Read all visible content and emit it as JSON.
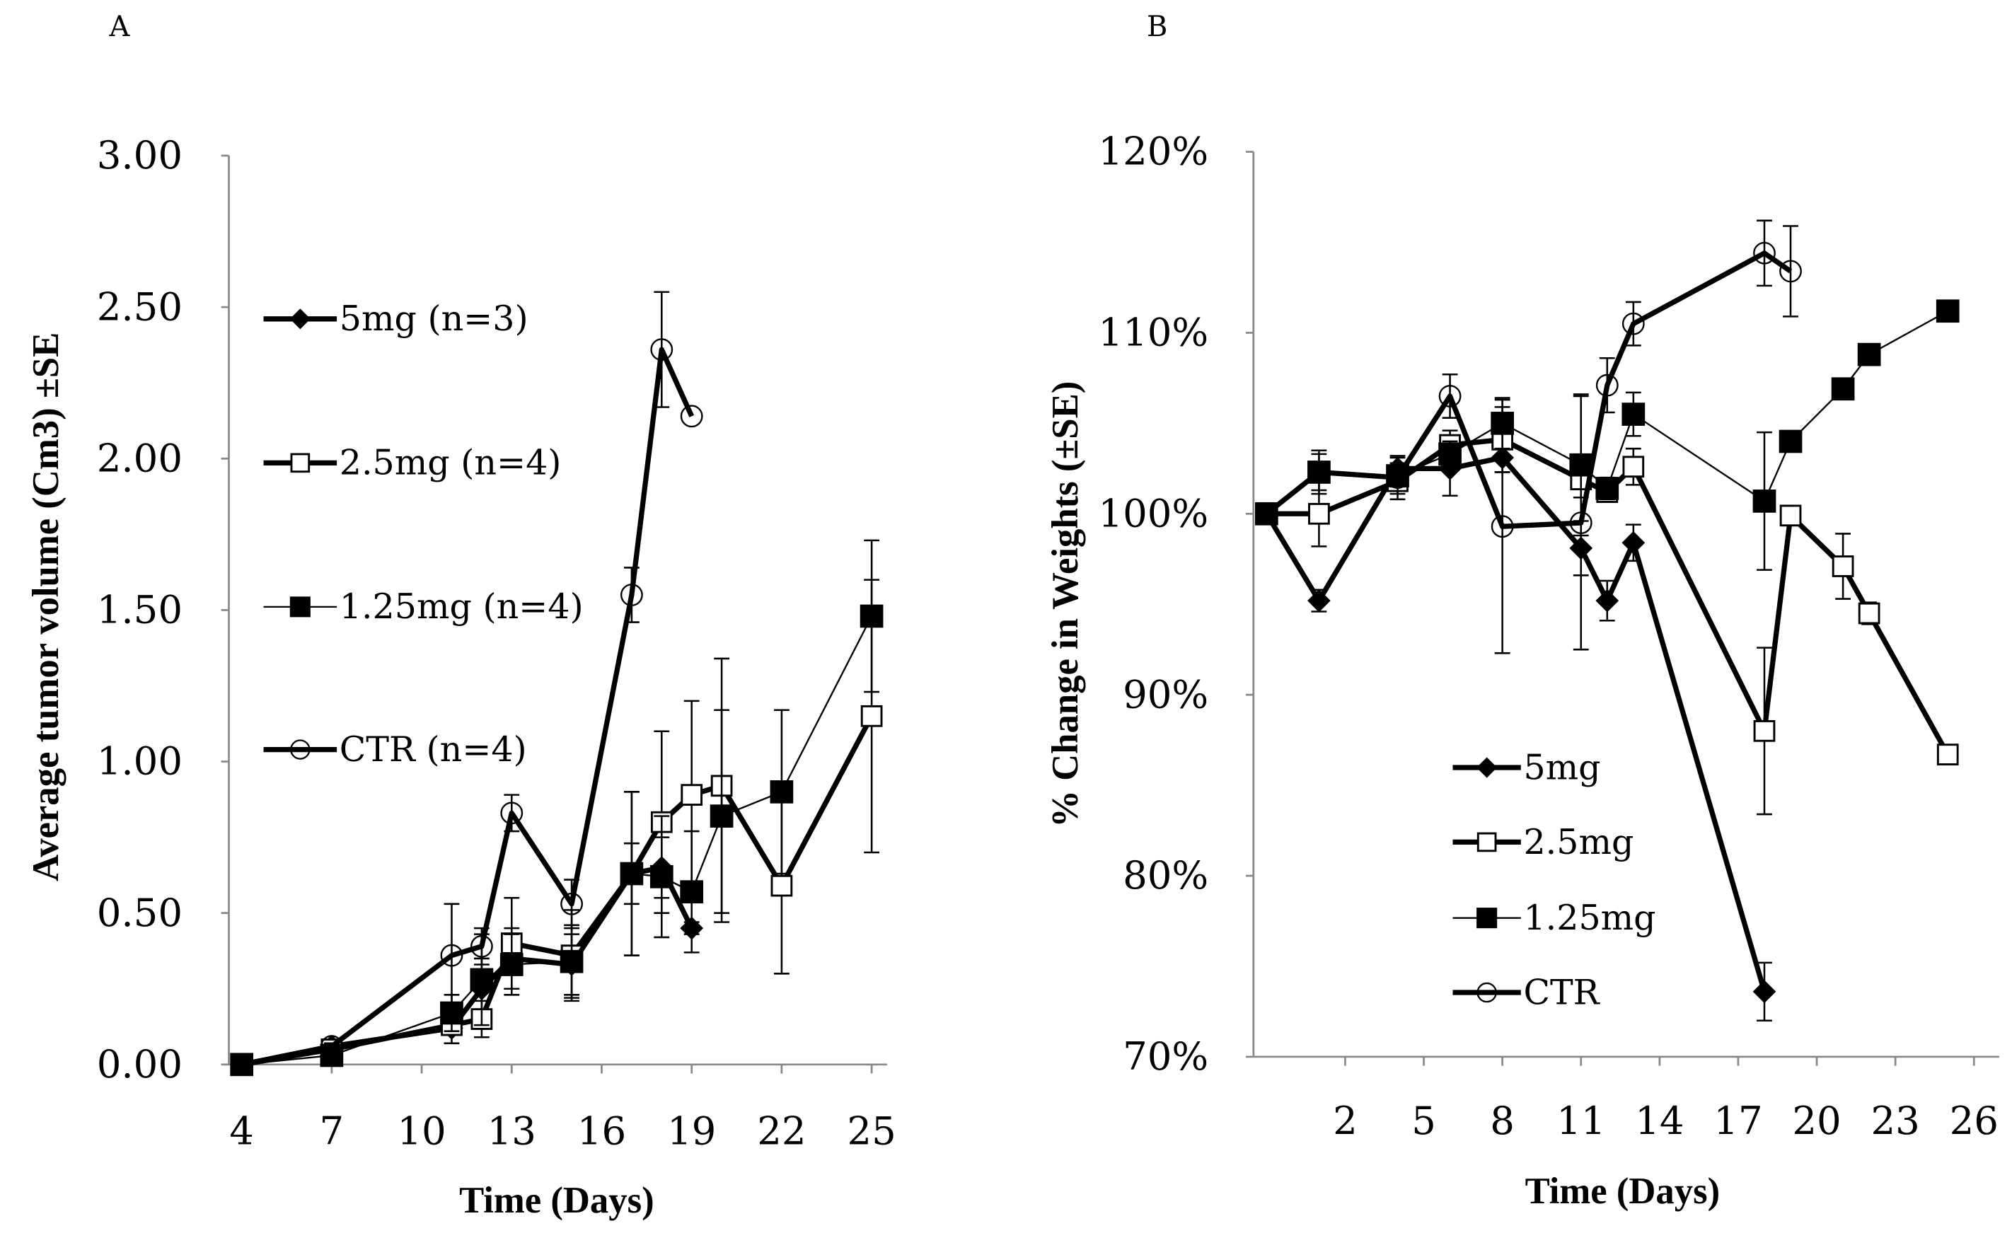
{
  "chart_data": [
    {
      "type": "line",
      "panel_label": "A",
      "title": "",
      "xlabel": "Time (Days)",
      "ylabel": "Average tumor volume (Cm3) ±SE",
      "xlim": [
        4,
        25
      ],
      "ylim": [
        0,
        3
      ],
      "xticks": [
        4,
        7,
        10,
        13,
        16,
        19,
        22,
        25
      ],
      "yticks": [
        0,
        0.5,
        1,
        1.5,
        2,
        2.5,
        3
      ],
      "ytick_labels": [
        "0.00",
        "0.50",
        "1.00",
        "1.50",
        "2.00",
        "2.50",
        "3.00"
      ],
      "grid": false,
      "legend_placement": "upper-left",
      "series": [
        {
          "name": "5mg (n=3)",
          "marker": "diamond-filled",
          "line": "thick",
          "x": [
            4,
            7,
            11,
            12,
            13,
            15,
            17,
            18,
            19
          ],
          "y": [
            0,
            0.06,
            0.12,
            0.25,
            0.35,
            0.33,
            0.63,
            0.65,
            0.45
          ],
          "err": [
            0,
            0.01,
            0.05,
            0.1,
            0.1,
            0.1,
            0.1,
            0.1,
            0.02
          ]
        },
        {
          "name": "2.5mg (n=4)",
          "marker": "square-open",
          "line": "thick",
          "x": [
            4,
            7,
            11,
            12,
            13,
            15,
            17,
            18,
            19,
            20,
            22,
            25
          ],
          "y": [
            0,
            0.05,
            0.13,
            0.15,
            0.4,
            0.36,
            0.63,
            0.8,
            0.89,
            0.92,
            0.59,
            1.15
          ],
          "err": [
            0,
            0.01,
            0.03,
            0.06,
            0.15,
            0.15,
            0.27,
            0.3,
            0.31,
            0.42,
            0.29,
            0.45
          ]
        },
        {
          "name": "1.25mg (n=4)",
          "marker": "square-filled",
          "line": "thin",
          "x": [
            4,
            7,
            11,
            12,
            13,
            15,
            17,
            18,
            19,
            20,
            22,
            25
          ],
          "y": [
            0,
            0.03,
            0.17,
            0.28,
            0.33,
            0.34,
            0.63,
            0.62,
            0.57,
            0.82,
            0.9,
            1.48
          ],
          "err": [
            0,
            0.01,
            0.06,
            0.15,
            0.1,
            0.12,
            0.27,
            0.2,
            0.2,
            0.35,
            0.27,
            0.25
          ]
        },
        {
          "name": "CTR (n=4)",
          "marker": "circle-open",
          "line": "thick",
          "x": [
            4,
            7,
            11,
            12,
            13,
            15,
            17,
            18,
            19
          ],
          "y": [
            0,
            0.06,
            0.36,
            0.39,
            0.83,
            0.53,
            1.55,
            2.36,
            2.14
          ],
          "err": [
            0,
            0.01,
            0.17,
            0.06,
            0.06,
            0.08,
            0.09,
            0.19,
            0
          ]
        }
      ]
    },
    {
      "type": "line",
      "panel_label": "B",
      "title": "",
      "xlabel": "Time (Days)",
      "ylabel": "% Change in Weights (±SE)",
      "xlim": [
        -1.5,
        27.5
      ],
      "ylim": [
        70,
        120
      ],
      "xticks": [
        2,
        5,
        8,
        11,
        14,
        17,
        20,
        23,
        26
      ],
      "yticks": [
        70,
        80,
        90,
        100,
        110,
        120
      ],
      "ytick_labels": [
        "70%",
        "80%",
        "90%",
        "100%",
        "110%",
        "120%"
      ],
      "grid": false,
      "legend_placement": "lower-center",
      "series": [
        {
          "name": "5mg",
          "marker": "diamond-filled",
          "line": "thick",
          "x": [
            -1,
            1,
            4,
            6,
            8,
            11,
            12,
            13,
            18
          ],
          "y": [
            100,
            95.2,
            102.5,
            102.5,
            103.1,
            98.1,
            95.2,
            98.4,
            73.6
          ],
          "err": [
            0,
            0.6,
            0.7,
            1.5,
            0.8,
            1.5,
            1.1,
            1.0,
            1.6
          ]
        },
        {
          "name": "2.5mg",
          "marker": "square-open",
          "line": "thick",
          "x": [
            -1,
            1,
            4,
            6,
            8,
            11,
            12,
            13,
            18,
            19,
            21,
            22,
            25
          ],
          "y": [
            100,
            100,
            101.8,
            103.8,
            104.1,
            101.9,
            101.2,
            102.6,
            88.0,
            99.9,
            97.1,
            94.5,
            86.7
          ],
          "err": [
            0,
            1.8,
            1.0,
            0.8,
            1.8,
            1.0,
            0.4,
            1.0,
            4.6,
            0.5,
            1.8,
            0.6,
            0.3
          ]
        },
        {
          "name": "1.25mg",
          "marker": "square-filled",
          "line": "thin",
          "x": [
            -1,
            1,
            4,
            6,
            8,
            11,
            12,
            13,
            18,
            19,
            21,
            22,
            25
          ],
          "y": [
            100,
            102.3,
            102.1,
            103.3,
            105.0,
            102.7,
            101.4,
            105.5,
            100.7,
            104.0,
            106.9,
            108.8,
            111.2
          ],
          "err": [
            0,
            1.2,
            1.0,
            0.7,
            1.4,
            3.9,
            0.6,
            1.2,
            3.8,
            0.3,
            0.3,
            0.3,
            0.3
          ]
        },
        {
          "name": "CTR",
          "marker": "circle-open",
          "line": "thick",
          "x": [
            -1,
            1,
            4,
            6,
            8,
            11,
            12,
            13,
            18,
            19
          ],
          "y": [
            100,
            102.3,
            102.0,
            106.5,
            99.3,
            99.5,
            107.1,
            110.5,
            114.4,
            113.4
          ],
          "err": [
            0,
            1.0,
            0.5,
            1.2,
            7.0,
            7.0,
            1.5,
            1.2,
            1.8,
            2.5
          ]
        }
      ]
    }
  ]
}
